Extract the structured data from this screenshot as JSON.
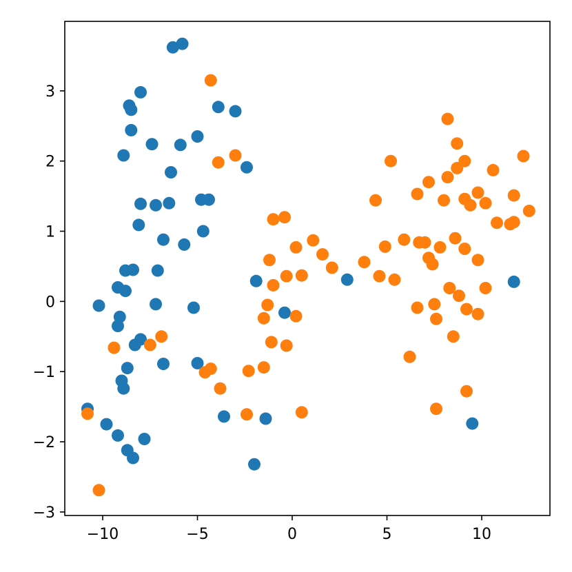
{
  "chart_data": {
    "type": "scatter",
    "title": "",
    "xlabel": "",
    "ylabel": "",
    "xlim": [
      -12,
      13.6
    ],
    "ylim": [
      -3.05,
      3.99
    ],
    "grid": false,
    "legend": "none",
    "x_ticks": [
      -10,
      -5,
      0,
      5,
      10
    ],
    "y_ticks": [
      -3,
      -2,
      -1,
      0,
      1,
      2,
      3
    ],
    "x_tick_labels": [
      "−10",
      "−5",
      "0",
      "5",
      "10"
    ],
    "y_tick_labels": [
      "−3",
      "−2",
      "−1",
      "0",
      "1",
      "2",
      "3"
    ],
    "series": [
      {
        "color": "#1f77b4",
        "points": [
          [
            -6.3,
            3.62
          ],
          [
            -5.8,
            3.67
          ],
          [
            -8.0,
            2.98
          ],
          [
            -8.6,
            2.79
          ],
          [
            -8.5,
            2.73
          ],
          [
            -3.9,
            2.77
          ],
          [
            -3.0,
            2.71
          ],
          [
            -8.5,
            2.44
          ],
          [
            -7.4,
            2.24
          ],
          [
            -5.9,
            2.23
          ],
          [
            -5.0,
            2.35
          ],
          [
            -8.9,
            2.08
          ],
          [
            -2.4,
            1.91
          ],
          [
            -6.4,
            1.84
          ],
          [
            -8.0,
            1.39
          ],
          [
            -7.2,
            1.37
          ],
          [
            -6.5,
            1.4
          ],
          [
            -4.8,
            1.45
          ],
          [
            -4.4,
            1.45
          ],
          [
            -8.1,
            1.09
          ],
          [
            -4.7,
            1.0
          ],
          [
            -6.8,
            0.88
          ],
          [
            -5.7,
            0.81
          ],
          [
            -8.8,
            0.44
          ],
          [
            -8.4,
            0.45
          ],
          [
            -7.1,
            0.44
          ],
          [
            -9.2,
            0.2
          ],
          [
            -8.8,
            0.15
          ],
          [
            -1.9,
            0.29
          ],
          [
            2.9,
            0.31
          ],
          [
            11.7,
            0.28
          ],
          [
            -10.2,
            -0.06
          ],
          [
            -7.2,
            -0.04
          ],
          [
            -5.2,
            -0.09
          ],
          [
            -0.4,
            -0.16
          ],
          [
            -9.1,
            -0.22
          ],
          [
            -9.2,
            -0.35
          ],
          [
            -8.0,
            -0.54
          ],
          [
            -8.3,
            -0.62
          ],
          [
            -6.8,
            -0.89
          ],
          [
            -5.0,
            -0.88
          ],
          [
            -8.7,
            -0.95
          ],
          [
            -9.0,
            -1.13
          ],
          [
            -8.9,
            -1.24
          ],
          [
            -10.8,
            -1.53
          ],
          [
            -3.6,
            -1.64
          ],
          [
            -1.4,
            -1.67
          ],
          [
            9.5,
            -1.74
          ],
          [
            -9.8,
            -1.75
          ],
          [
            -9.2,
            -1.91
          ],
          [
            -7.8,
            -1.96
          ],
          [
            -8.7,
            -2.12
          ],
          [
            -8.4,
            -2.23
          ],
          [
            -2.0,
            -2.32
          ]
        ]
      },
      {
        "color": "#ff7f0e",
        "points": [
          [
            -4.3,
            3.15
          ],
          [
            8.2,
            2.6
          ],
          [
            -3.0,
            2.08
          ],
          [
            -3.9,
            1.98
          ],
          [
            5.2,
            2.0
          ],
          [
            8.7,
            2.25
          ],
          [
            12.2,
            2.07
          ],
          [
            9.1,
            2.0
          ],
          [
            8.7,
            1.9
          ],
          [
            10.6,
            1.87
          ],
          [
            8.2,
            1.77
          ],
          [
            7.2,
            1.7
          ],
          [
            6.6,
            1.53
          ],
          [
            9.8,
            1.55
          ],
          [
            11.7,
            1.51
          ],
          [
            4.4,
            1.44
          ],
          [
            8.0,
            1.44
          ],
          [
            9.1,
            1.46
          ],
          [
            9.4,
            1.37
          ],
          [
            10.2,
            1.4
          ],
          [
            12.5,
            1.29
          ],
          [
            -1.0,
            1.17
          ],
          [
            -0.4,
            1.2
          ],
          [
            11.5,
            1.1
          ],
          [
            11.7,
            1.13
          ],
          [
            10.8,
            1.12
          ],
          [
            1.1,
            0.87
          ],
          [
            5.9,
            0.88
          ],
          [
            8.6,
            0.9
          ],
          [
            6.7,
            0.84
          ],
          [
            7.0,
            0.84
          ],
          [
            4.9,
            0.78
          ],
          [
            7.8,
            0.77
          ],
          [
            0.2,
            0.77
          ],
          [
            9.1,
            0.75
          ],
          [
            1.6,
            0.67
          ],
          [
            7.2,
            0.62
          ],
          [
            9.8,
            0.59
          ],
          [
            -1.2,
            0.59
          ],
          [
            3.8,
            0.56
          ],
          [
            7.4,
            0.53
          ],
          [
            2.1,
            0.48
          ],
          [
            -1.0,
            0.23
          ],
          [
            -0.3,
            0.36
          ],
          [
            0.5,
            0.37
          ],
          [
            4.6,
            0.36
          ],
          [
            5.4,
            0.31
          ],
          [
            8.3,
            0.19
          ],
          [
            10.2,
            0.19
          ],
          [
            8.8,
            0.08
          ],
          [
            -1.3,
            -0.05
          ],
          [
            7.5,
            -0.04
          ],
          [
            6.6,
            -0.09
          ],
          [
            9.2,
            -0.11
          ],
          [
            9.8,
            -0.18
          ],
          [
            -1.5,
            -0.24
          ],
          [
            0.2,
            -0.21
          ],
          [
            7.6,
            -0.25
          ],
          [
            -9.4,
            -0.66
          ],
          [
            -7.5,
            -0.62
          ],
          [
            -6.9,
            -0.5
          ],
          [
            -1.1,
            -0.58
          ],
          [
            -0.3,
            -0.63
          ],
          [
            8.5,
            -0.5
          ],
          [
            6.2,
            -0.79
          ],
          [
            -4.6,
            -1.01
          ],
          [
            -4.3,
            -0.96
          ],
          [
            -2.3,
            -0.99
          ],
          [
            -1.5,
            -0.94
          ],
          [
            -3.8,
            -1.24
          ],
          [
            9.2,
            -1.28
          ],
          [
            7.6,
            -1.53
          ],
          [
            -10.8,
            -1.6
          ],
          [
            -2.4,
            -1.61
          ],
          [
            0.5,
            -1.58
          ],
          [
            -10.2,
            -2.69
          ]
        ]
      }
    ]
  }
}
